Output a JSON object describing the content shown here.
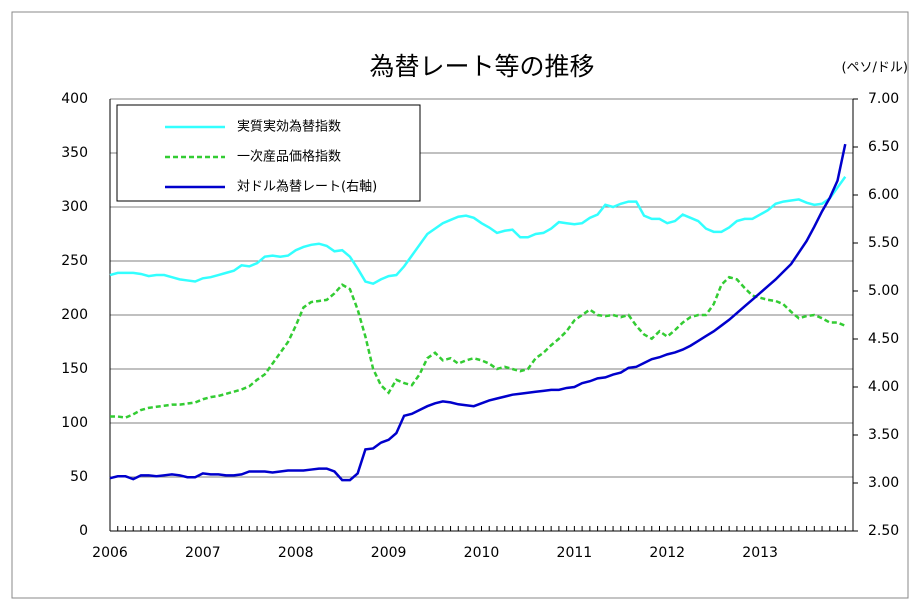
{
  "chart_data": {
    "type": "line",
    "title": "為替レート等の推移",
    "y2_label": "(ペソ/ドル)",
    "categories": [
      "2006",
      null,
      null,
      null,
      null,
      null,
      null,
      null,
      null,
      null,
      null,
      null,
      "2007",
      null,
      null,
      null,
      null,
      null,
      null,
      null,
      null,
      null,
      null,
      null,
      "2008",
      null,
      null,
      null,
      null,
      null,
      null,
      null,
      null,
      null,
      null,
      null,
      "2009",
      null,
      null,
      null,
      null,
      null,
      null,
      null,
      null,
      null,
      null,
      null,
      "2010",
      null,
      null,
      null,
      null,
      null,
      null,
      null,
      null,
      null,
      null,
      null,
      "2011",
      null,
      null,
      null,
      null,
      null,
      null,
      null,
      null,
      null,
      null,
      null,
      "2012",
      null,
      null,
      null,
      null,
      null,
      null,
      null,
      null,
      null,
      null,
      null,
      "2013",
      null,
      null,
      null,
      null,
      null,
      null,
      null,
      null,
      null,
      null,
      null
    ],
    "series": [
      {
        "name": "実質実効為替指数",
        "color": "#33ffff",
        "dashed": false,
        "values": [
          237,
          239,
          239,
          239,
          238,
          236,
          237,
          237,
          235,
          233,
          232,
          231,
          234,
          235,
          237,
          239,
          241,
          246,
          245,
          248,
          254,
          255,
          254,
          255,
          260,
          263,
          265,
          266,
          264,
          259,
          260,
          254,
          243,
          231,
          229,
          233,
          236,
          237,
          245,
          255,
          265,
          275,
          280,
          285,
          288,
          291,
          292,
          290,
          285,
          281,
          276,
          278,
          279,
          272,
          272,
          275,
          276,
          280,
          286,
          285,
          284,
          285,
          290,
          293,
          302,
          300,
          303,
          305,
          305,
          292,
          289,
          289,
          285,
          287,
          293,
          290,
          287,
          280,
          277,
          277,
          281,
          287,
          289,
          289,
          293,
          297,
          303,
          305,
          306,
          307,
          304,
          302,
          303,
          308,
          318,
          328
        ]
      },
      {
        "name": "一次産品価格指数",
        "color": "#33cc33",
        "dashed": true,
        "values": [
          106,
          106,
          105,
          108,
          112,
          114,
          115,
          116,
          117,
          117,
          118,
          119,
          122,
          124,
          125,
          127,
          129,
          131,
          134,
          140,
          145,
          155,
          165,
          175,
          190,
          207,
          212,
          213,
          214,
          220,
          228,
          224,
          205,
          180,
          150,
          135,
          128,
          140,
          137,
          135,
          145,
          160,
          165,
          158,
          160,
          155,
          158,
          160,
          158,
          155,
          150,
          152,
          150,
          148,
          150,
          160,
          165,
          172,
          178,
          185,
          195,
          200,
          205,
          200,
          199,
          200,
          198,
          200,
          190,
          182,
          178,
          185,
          180,
          186,
          193,
          198,
          200,
          200,
          210,
          228,
          235,
          233,
          225,
          218,
          216,
          214,
          213,
          210,
          203,
          197,
          199,
          200,
          197,
          193,
          193,
          190
        ]
      },
      {
        "name": "対ドル為替レート(右軸)",
        "color": "#0000cc",
        "dashed": false,
        "axis": "y2",
        "values": [
          3.05,
          3.07,
          3.07,
          3.04,
          3.08,
          3.08,
          3.07,
          3.08,
          3.09,
          3.08,
          3.06,
          3.06,
          3.1,
          3.09,
          3.09,
          3.08,
          3.08,
          3.09,
          3.12,
          3.12,
          3.12,
          3.11,
          3.12,
          3.13,
          3.13,
          3.13,
          3.14,
          3.15,
          3.15,
          3.12,
          3.03,
          3.03,
          3.1,
          3.35,
          3.36,
          3.42,
          3.45,
          3.52,
          3.7,
          3.72,
          3.76,
          3.8,
          3.83,
          3.85,
          3.84,
          3.82,
          3.81,
          3.8,
          3.83,
          3.86,
          3.88,
          3.9,
          3.92,
          3.93,
          3.94,
          3.95,
          3.96,
          3.97,
          3.97,
          3.99,
          4.0,
          4.04,
          4.06,
          4.09,
          4.1,
          4.13,
          4.15,
          4.2,
          4.21,
          4.25,
          4.29,
          4.31,
          4.34,
          4.36,
          4.39,
          4.43,
          4.48,
          4.53,
          4.58,
          4.64,
          4.7,
          4.77,
          4.84,
          4.91,
          4.98,
          5.05,
          5.12,
          5.2,
          5.28,
          5.4,
          5.52,
          5.67,
          5.83,
          5.97,
          6.15,
          6.53
        ]
      }
    ],
    "ylim": [
      0,
      400
    ],
    "yticks": [
      0,
      50,
      100,
      150,
      200,
      250,
      300,
      350,
      400
    ],
    "y2lim": [
      2.5,
      7
    ],
    "y2ticks": [
      {
        "value": 2.5,
        "label": "2.50"
      },
      {
        "value": 3,
        "label": "3.00"
      },
      {
        "value": 3.5,
        "label": "3.50"
      },
      {
        "value": 4,
        "label": "4.00"
      },
      {
        "value": 4.5,
        "label": "4.50"
      },
      {
        "value": 5,
        "label": "5.00"
      },
      {
        "value": 5.5,
        "label": "5.50"
      },
      {
        "value": 6,
        "label": "6.00"
      },
      {
        "value": 6.5,
        "label": "6.50"
      },
      {
        "value": 7,
        "label": "7.00"
      }
    ],
    "grid": true,
    "legend": "upper-left"
  }
}
